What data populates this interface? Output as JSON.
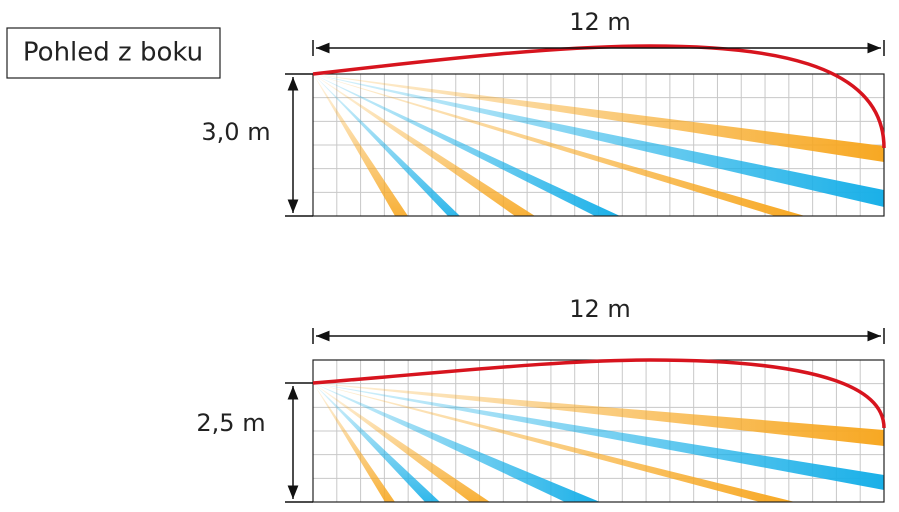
{
  "view_label": "Pohled z boku",
  "panels": [
    {
      "length_label": "12 m",
      "height_label": "3,0 m"
    },
    {
      "length_label": "12 m",
      "height_label": "2,5 m"
    }
  ]
}
